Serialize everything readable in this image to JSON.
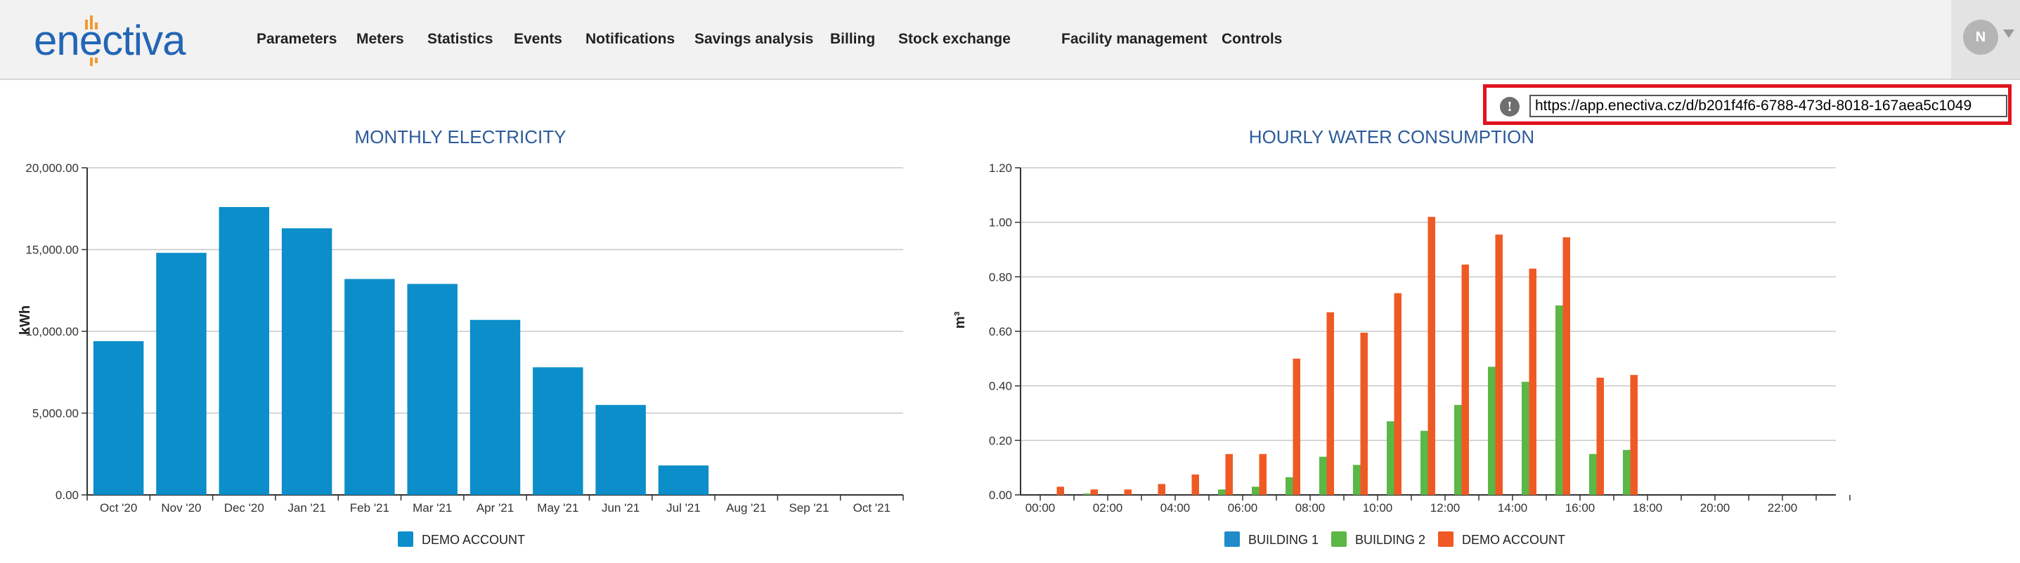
{
  "header": {
    "logo_text": "enectiva",
    "nav": [
      "Parameters",
      "Meters",
      "Statistics",
      "Events",
      "Notifications",
      "Savings analysis",
      "Billing",
      "Stock exchange",
      "Facility management",
      "Controls"
    ],
    "user_initial": "N",
    "user_menu_icon": "chevron-down-icon"
  },
  "url_box": {
    "icon": "info-icon",
    "icon_text": "!",
    "url": "https://app.enectiva.cz/d/b201f4f6-6788-473d-8018-167aea5c1049"
  },
  "colors": {
    "demo_account_monthly": "#0b8ec9",
    "building_1": "#1f8bc9",
    "building_2": "#5bb746",
    "demo_account_hourly": "#ef5a24",
    "title": "#2c5b9b",
    "url_box_border": "#e0141e"
  },
  "chart_data": [
    {
      "type": "bar",
      "title": "MONTHLY ELECTRICITY",
      "ylabel": "kWh",
      "ylim": [
        0,
        20000
      ],
      "yticks": [
        "0.00",
        "5,000.00",
        "10,000.00",
        "15,000.00",
        "20,000.00"
      ],
      "categories": [
        "Oct '20",
        "Nov '20",
        "Dec '20",
        "Jan '21",
        "Feb '21",
        "Mar '21",
        "Apr '21",
        "May '21",
        "Jun '21",
        "Jul '21",
        "Aug '21",
        "Sep '21",
        "Oct '21"
      ],
      "series": [
        {
          "name": "DEMO ACCOUNT",
          "values": [
            9400,
            14800,
            17600,
            16300,
            13200,
            12900,
            10700,
            7800,
            5500,
            1800,
            0,
            0,
            0
          ]
        }
      ],
      "grid": true,
      "legend": "bottom-center"
    },
    {
      "type": "bar",
      "title": "HOURLY WATER CONSUMPTION",
      "ylabel": "m³",
      "ylim": [
        0,
        1.2
      ],
      "yticks": [
        "0.00",
        "0.20",
        "0.40",
        "0.60",
        "0.80",
        "1.00",
        "1.20"
      ],
      "x_hours": 24,
      "xticks": [
        "00:00",
        "02:00",
        "04:00",
        "06:00",
        "08:00",
        "10:00",
        "12:00",
        "14:00",
        "16:00",
        "18:00",
        "20:00",
        "22:00"
      ],
      "series": [
        {
          "name": "BUILDING 1",
          "values": [
            0,
            0,
            0,
            0,
            0,
            0,
            0,
            0,
            0,
            0,
            0,
            0,
            0,
            0,
            0,
            0,
            0,
            0,
            0,
            0,
            0,
            0,
            0,
            0
          ]
        },
        {
          "name": "BUILDING 2",
          "values": [
            0,
            0.005,
            0,
            0,
            0,
            0.02,
            0.03,
            0.065,
            0.14,
            0.11,
            0.27,
            0.235,
            0.33,
            0.47,
            0.415,
            0.695,
            0.15,
            0.165,
            0,
            0,
            0,
            0,
            0,
            0
          ]
        },
        {
          "name": "DEMO ACCOUNT",
          "values": [
            0.03,
            0.02,
            0.02,
            0.04,
            0.075,
            0.15,
            0.15,
            0.5,
            0.67,
            0.595,
            0.74,
            1.02,
            0.845,
            0.955,
            0.83,
            0.945,
            0.43,
            0.44,
            0,
            0,
            0,
            0,
            0,
            0
          ]
        }
      ],
      "grid": true,
      "legend": "bottom-center"
    }
  ]
}
